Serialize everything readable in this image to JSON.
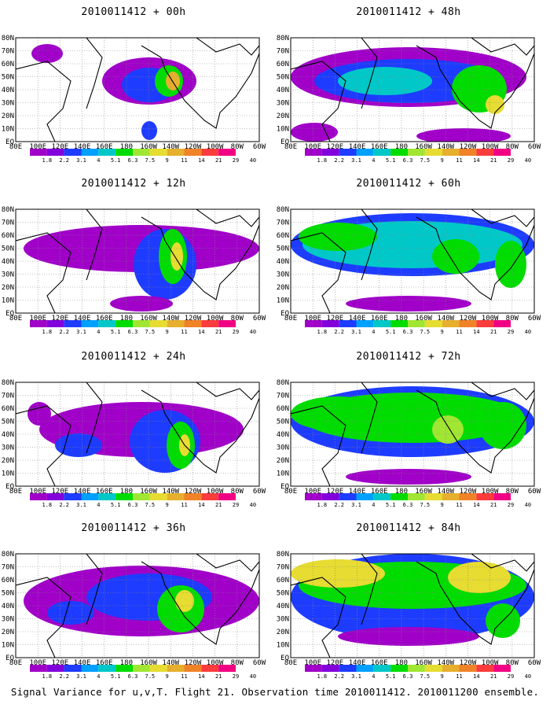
{
  "figure": {
    "caption": "Signal Variance for u,v,T. Flight 21. Observation time 2010011412. 2010011200 ensemble."
  },
  "axes": {
    "lat_labels": [
      "80N",
      "70N",
      "60N",
      "50N",
      "40N",
      "30N",
      "20N",
      "10N",
      "EQ"
    ],
    "lon_labels": [
      "80E",
      "100E",
      "120E",
      "140E",
      "160E",
      "180",
      "160W",
      "140W",
      "120W",
      "100W",
      "80W",
      "60W"
    ]
  },
  "colorbar": {
    "labels": [
      "1.8",
      "2.2",
      "3.1",
      "4",
      "5.1",
      "6.3",
      "7.5",
      "9",
      "11",
      "14",
      "21",
      "29",
      "40"
    ],
    "colors": [
      "#a000c8",
      "#8200dc",
      "#1e3cff",
      "#00a0ff",
      "#00c8c8",
      "#00dc00",
      "#a0e632",
      "#e6dc32",
      "#e6af2d",
      "#f08228",
      "#fa3c3c",
      "#f00082"
    ]
  },
  "panels": [
    {
      "title": "2010011412 + 00h"
    },
    {
      "title": "2010011412 + 48h"
    },
    {
      "title": "2010011412 + 12h"
    },
    {
      "title": "2010011412 + 60h"
    },
    {
      "title": "2010011412 + 24h"
    },
    {
      "title": "2010011412 + 72h"
    },
    {
      "title": "2010011412 + 36h"
    },
    {
      "title": "2010011412 + 84h"
    }
  ]
}
